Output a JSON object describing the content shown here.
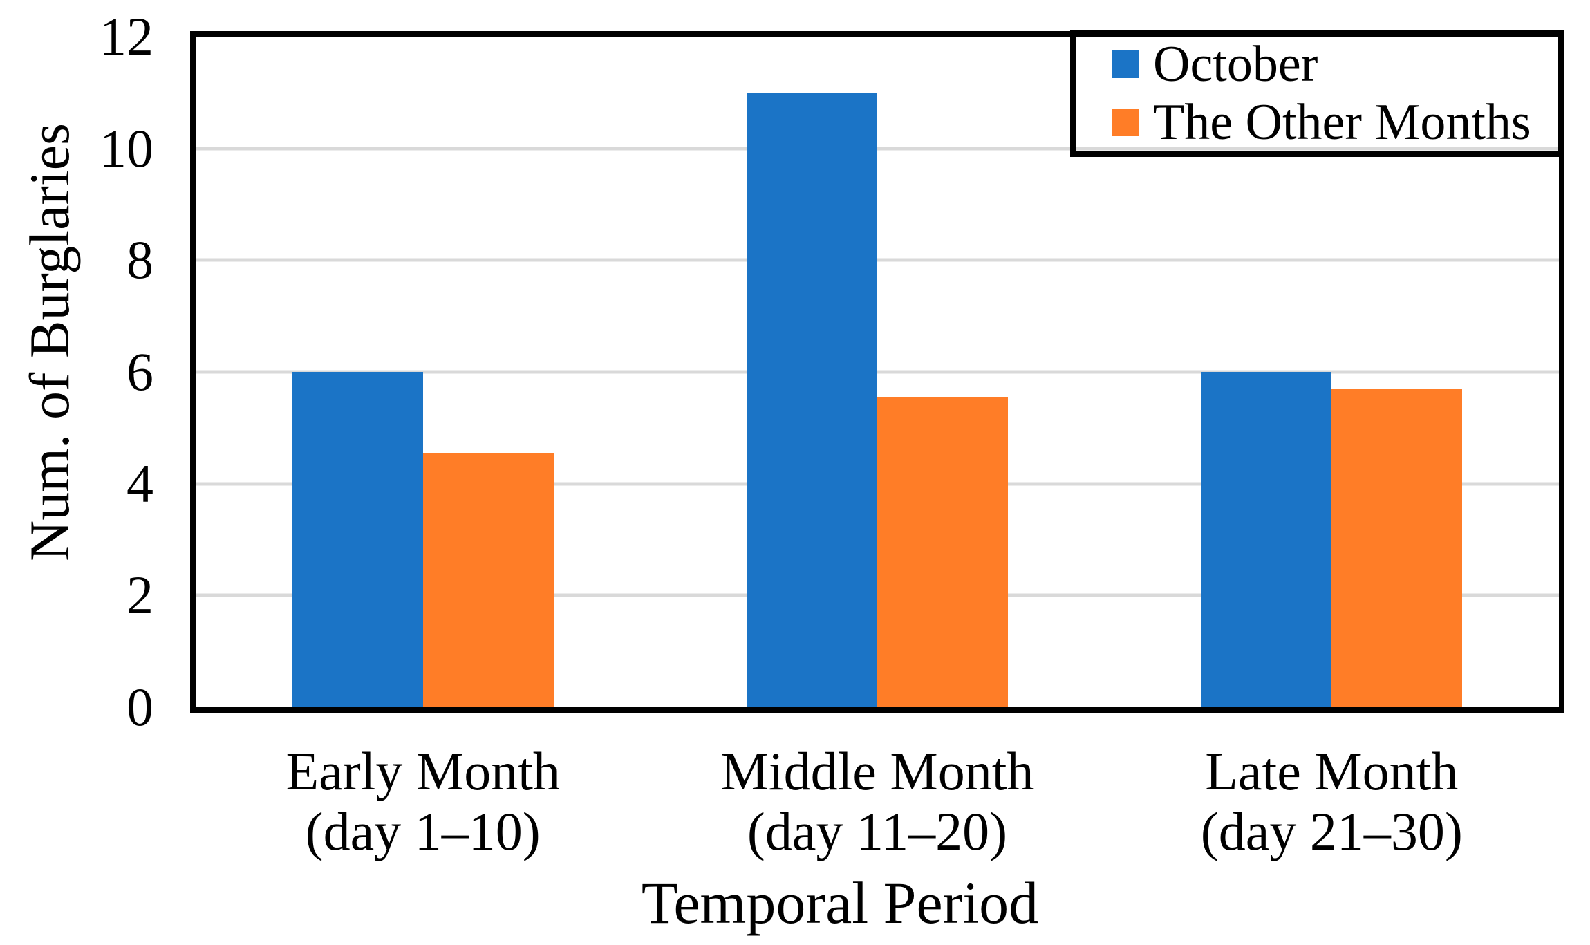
{
  "chart_data": {
    "type": "bar",
    "title": "",
    "xlabel": "Temporal Period",
    "ylabel": "Num. of Burglaries",
    "categories": [
      "Early Month (day 1–10)",
      "Middle Month (day 11–20)",
      "Late Month (day 21–30)"
    ],
    "category_lines": [
      [
        "Early Month",
        "(day 1–10)"
      ],
      [
        "Middle Month",
        "(day 11–20)"
      ],
      [
        "Late Month",
        "(day 21–30)"
      ]
    ],
    "series": [
      {
        "name": "October",
        "color": "#1B74C6",
        "values": [
          6,
          11,
          6
        ]
      },
      {
        "name": "The Other Months",
        "color": "#FF7D27",
        "values": [
          4.55,
          5.55,
          5.7
        ]
      }
    ],
    "ylim": [
      0,
      12
    ],
    "yticks": [
      0,
      2,
      4,
      6,
      8,
      10,
      12
    ],
    "grid": "horizontal",
    "colors": {
      "gridline": "#D9D9D9",
      "axis_border": "#000000",
      "background": "#FFFFFF",
      "text": "#000000"
    },
    "legend": {
      "position": "top-right",
      "entries": [
        "October",
        "The Other Months"
      ]
    }
  }
}
